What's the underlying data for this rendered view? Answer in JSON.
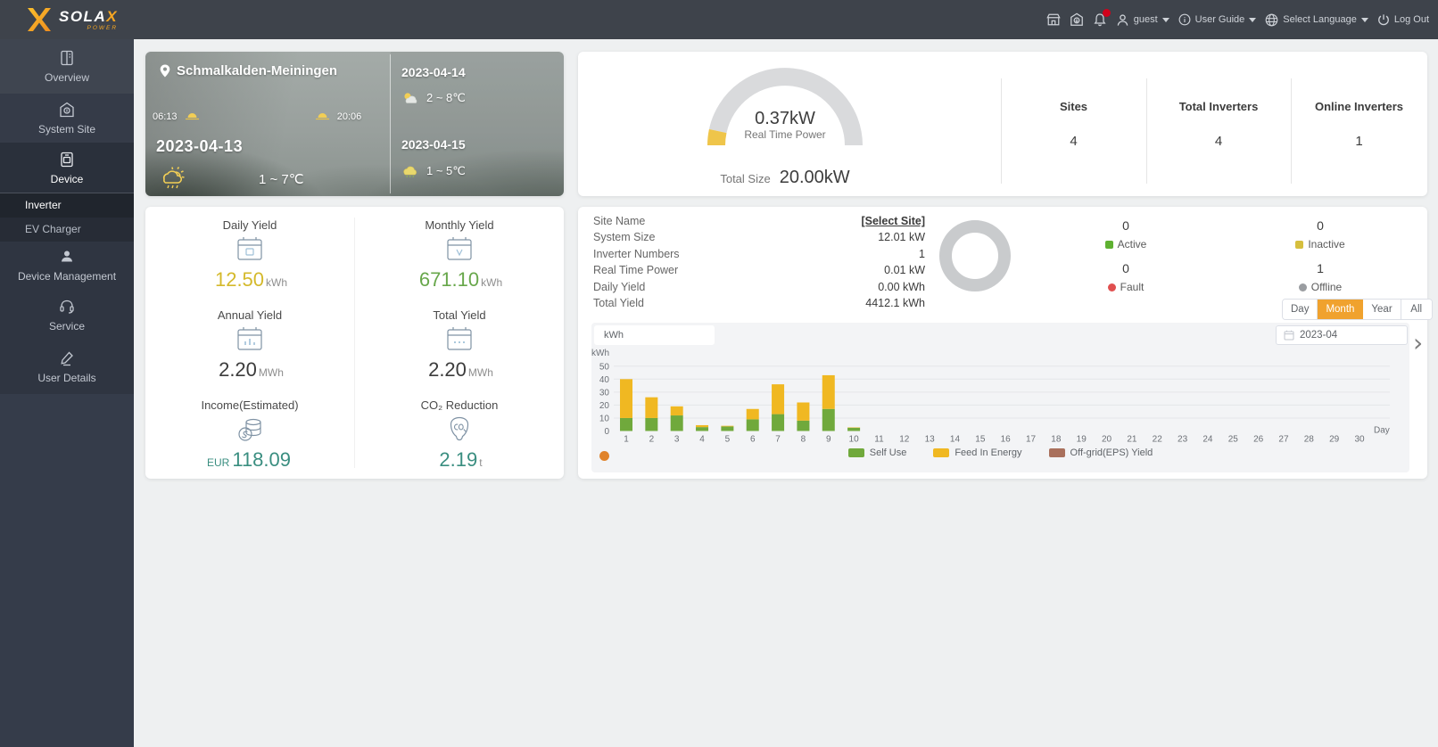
{
  "brand": {
    "name": "SOLA",
    "x": "X",
    "sub": "POWER"
  },
  "topbar": {
    "user": "guest",
    "user_guide": "User Guide",
    "language": "Select Language",
    "logout": "Log Out"
  },
  "sidebar": {
    "items": [
      {
        "label": "Overview"
      },
      {
        "label": "System Site"
      },
      {
        "label": "Device"
      },
      {
        "label": "Device Management"
      },
      {
        "label": "Service"
      },
      {
        "label": "User Details"
      }
    ],
    "submenu": [
      {
        "label": "Inverter",
        "active": true
      },
      {
        "label": "EV Charger",
        "active": false
      }
    ]
  },
  "weather": {
    "location": "Schmalkalden-Meiningen",
    "sunrise": "06:13",
    "sunset": "20:06",
    "date": "2023-04-13",
    "temp": "1 ~ 7℃",
    "forecast": [
      {
        "date": "2023-04-14",
        "temp": "2 ~ 8℃"
      },
      {
        "date": "2023-04-15",
        "temp": "1 ~ 5℃"
      }
    ]
  },
  "overview": {
    "real_time_power": "0.37kW",
    "real_time_label": "Real Time Power",
    "total_size_label": "Total Size",
    "total_size": "20.00kW",
    "gauge_color": "#efc54a",
    "gauge_track": "#d9dadc",
    "stats": [
      {
        "label": "Sites",
        "value": "4"
      },
      {
        "label": "Total Inverters",
        "value": "4"
      },
      {
        "label": "Online Inverters",
        "value": "1"
      }
    ]
  },
  "yield": {
    "cells": [
      {
        "label": "Daily Yield",
        "prefix": "",
        "value": "12.50",
        "unit": "kWh",
        "color": "#d4b92b",
        "icon": "calendar-day-icon"
      },
      {
        "label": "Monthly Yield",
        "prefix": "",
        "value": "671.10",
        "unit": "kWh",
        "color": "#68a74b",
        "icon": "calendar-month-icon"
      },
      {
        "label": "Annual Yield",
        "prefix": "",
        "value": "2.20",
        "unit": "MWh",
        "color": "#3c3c3c",
        "icon": "calendar-year-icon"
      },
      {
        "label": "Total Yield",
        "prefix": "",
        "value": "2.20",
        "unit": "MWh",
        "color": "#3c3c3c",
        "icon": "calendar-total-icon"
      },
      {
        "label": "Income(Estimated)",
        "prefix": "EUR",
        "value": "118.09",
        "unit": "",
        "color": "#3a8e80",
        "icon": "coins-icon"
      },
      {
        "label": "CO₂ Reduction",
        "prefix": "",
        "value": "2.19",
        "unit": "t",
        "color": "#3a8e80",
        "icon": "co2-icon"
      }
    ]
  },
  "site": {
    "rows": [
      {
        "label": "Site Name",
        "value": "[Select Site]",
        "link": true
      },
      {
        "label": "System Size",
        "value": "12.01 kW"
      },
      {
        "label": "Inverter Numbers",
        "value": "1"
      },
      {
        "label": "Real Time Power",
        "value": "0.01 kW"
      },
      {
        "label": "Daily Yield",
        "value": "0.00 kWh"
      },
      {
        "label": "Total Yield",
        "value": "4412.1 kWh"
      }
    ],
    "donut_color": "#c9cbcd",
    "statuses": [
      {
        "label": "Active",
        "count": "0",
        "color": "#5fb131",
        "shape": "square"
      },
      {
        "label": "Inactive",
        "count": "0",
        "color": "#d6bf3e",
        "shape": "square"
      },
      {
        "label": "Fault",
        "count": "0",
        "color": "#e04f4f",
        "shape": "circle"
      },
      {
        "label": "Offline",
        "count": "1",
        "color": "#9a9da1",
        "shape": "circle"
      }
    ],
    "tabs": [
      "Day",
      "Month",
      "Year",
      "All"
    ],
    "active_tab": "Month",
    "unit_select": "kWh",
    "date": "2023-04",
    "next_arrow": "›"
  },
  "chart_data": {
    "type": "bar",
    "stacked": true,
    "title": "",
    "xlabel": "Day",
    "ylabel": "kWh",
    "ylim": [
      0,
      50
    ],
    "yticks": [
      0,
      10,
      20,
      30,
      40,
      50
    ],
    "categories": [
      1,
      2,
      3,
      4,
      5,
      6,
      7,
      8,
      9,
      10,
      11,
      12,
      13,
      14,
      15,
      16,
      17,
      18,
      19,
      20,
      21,
      22,
      23,
      24,
      25,
      26,
      27,
      28,
      29,
      30
    ],
    "grid": true,
    "legend_position": "bottom",
    "series": [
      {
        "name": "Self Use",
        "color": "#70a93c",
        "values": [
          10,
          10,
          12,
          3,
          3.5,
          9,
          13,
          8,
          17,
          2.5,
          0,
          0,
          0,
          0,
          0,
          0,
          0,
          0,
          0,
          0,
          0,
          0,
          0,
          0,
          0,
          0,
          0,
          0,
          0,
          0
        ]
      },
      {
        "name": "Feed In Energy",
        "color": "#f0b822",
        "values": [
          30,
          16,
          7,
          1.5,
          0.5,
          8,
          23,
          14,
          26,
          0.3,
          0,
          0,
          0,
          0,
          0,
          0,
          0,
          0,
          0,
          0,
          0,
          0,
          0,
          0,
          0,
          0,
          0,
          0,
          0,
          0
        ]
      },
      {
        "name": "Off-grid(EPS) Yield",
        "color": "#a9705c",
        "values": [
          0,
          0,
          0,
          0,
          0,
          0,
          0,
          0,
          0,
          0,
          0,
          0,
          0,
          0,
          0,
          0,
          0,
          0,
          0,
          0,
          0,
          0,
          0,
          0,
          0,
          0,
          0,
          0,
          0,
          0
        ]
      }
    ]
  }
}
